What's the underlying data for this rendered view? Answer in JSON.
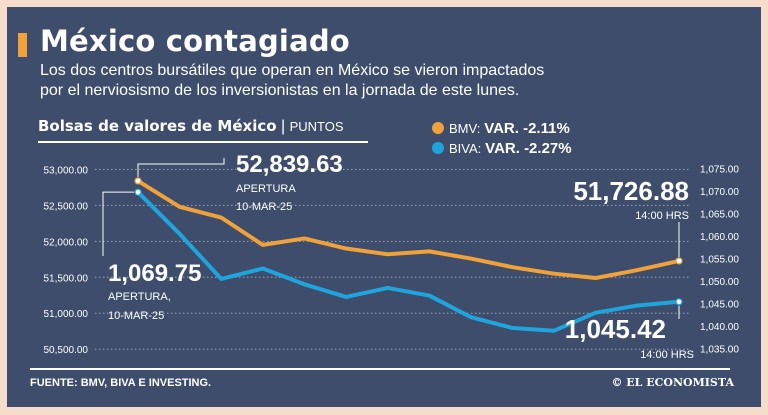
{
  "title": "México contagiado",
  "subtitle_lines": [
    "Los dos centros bursátiles que operan en México se vieron impactados",
    "por el nerviosismo de los inversionistas en la jornada de este lunes."
  ],
  "chart_heading": "Bolsas de valores de México",
  "chart_heading_sep": "|",
  "chart_heading_unit": "PUNTOS",
  "legend": [
    {
      "name": "BMV:",
      "variation": "VAR. -2.11%",
      "color": "#f0a23a"
    },
    {
      "name": "BIVA:",
      "variation": "VAR. -2.27%",
      "color": "#1fa5dc"
    }
  ],
  "chart_data": {
    "type": "line",
    "left_axis": {
      "ylim": [
        50350,
        53200
      ],
      "ticks": [
        "53,000.00",
        "52,500.00",
        "52,000.00",
        "51,500.00",
        "51,000.00",
        "50,500.00"
      ],
      "values": [
        53000,
        52500,
        52000,
        51500,
        51000,
        50500
      ]
    },
    "right_axis": {
      "ylim": [
        1032.5,
        1078
      ],
      "ticks": [
        "1,075.00",
        "1,070.00",
        "1,065.00",
        "1,060.00",
        "1,055.00",
        "1,050.00",
        "1,045.00",
        "1,040.00",
        "1,035.00"
      ],
      "values": [
        1075,
        1070,
        1065,
        1060,
        1055,
        1050,
        1045,
        1040,
        1035
      ]
    },
    "series": [
      {
        "name": "BMV",
        "axis": "left",
        "color": "#f0a23a",
        "values": [
          52839.63,
          52480,
          52330,
          51950,
          52040,
          51900,
          51820,
          51860,
          51760,
          51640,
          51550,
          51490,
          51600,
          51726.88
        ]
      },
      {
        "name": "BIVA",
        "axis": "right",
        "color": "#1fa5dc",
        "values": [
          1069.75,
          1060.5,
          1050.5,
          1052.8,
          1049.3,
          1046.5,
          1048.5,
          1046.8,
          1042.0,
          1039.6,
          1039.0,
          1043.0,
          1044.6,
          1045.42
        ]
      }
    ],
    "annotations": {
      "bmv_open": {
        "value": "52,839.63",
        "label": "APERTURA",
        "date": "10-MAR-25"
      },
      "bmv_close": {
        "value": "51,726.88",
        "time": "14:00 HRS"
      },
      "biva_open": {
        "value": "1,069.75",
        "label": "APERTURA,",
        "date": "10-MAR-25"
      },
      "biva_close": {
        "value": "1,045.42",
        "time": "14:00 HRS"
      }
    }
  },
  "footer": {
    "source": "FUENTE: BMV, BIVA E INVESTING.",
    "brand": "© EL ECONOMISTA"
  }
}
